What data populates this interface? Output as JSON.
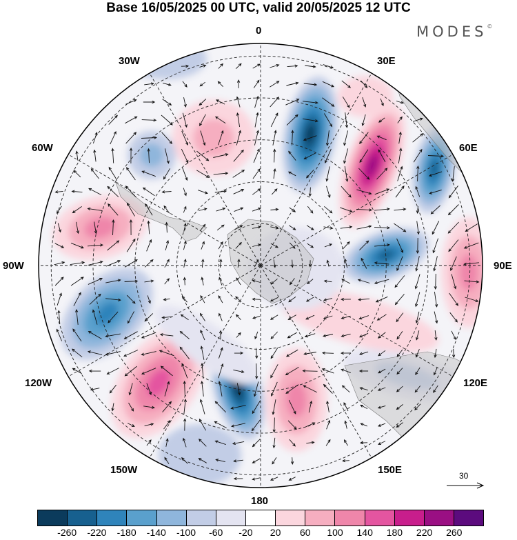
{
  "title": "Base 16/05/2025 00 UTC, valid 20/05/2025 12 UTC",
  "brand": {
    "name": "MODES",
    "mark": "©"
  },
  "longitude_labels": {
    "top": "0",
    "top_right": "30E",
    "right_upper": "60E",
    "right": "90E",
    "right_lower": "120E",
    "bottom_right": "150E",
    "bottom": "180",
    "bottom_left": "150W",
    "left_lower": "120W",
    "left": "90W",
    "left_upper": "60W",
    "top_left": "30W"
  },
  "reference_vector": {
    "value": "30",
    "icon": "arrow-right-icon"
  },
  "colorbar": {
    "colors": [
      "#0b3b5c",
      "#17608f",
      "#2f84bb",
      "#5aa0cd",
      "#8fb6dc",
      "#c2cde6",
      "#e4e4f1",
      "#ffffff",
      "#fbd6de",
      "#f6aec0",
      "#ef86aa",
      "#e455a0",
      "#c81e8c",
      "#9a0f83",
      "#5c0b7e"
    ],
    "ticks": [
      "-260",
      "-220",
      "-180",
      "-140",
      "-100",
      "-60",
      "-20",
      "20",
      "60",
      "100",
      "140",
      "180",
      "220",
      "260"
    ]
  }
}
